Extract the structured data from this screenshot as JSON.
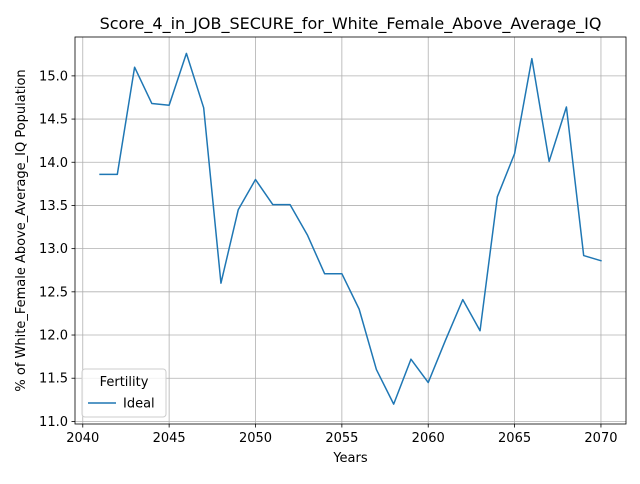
{
  "chart_data": {
    "type": "line",
    "title": "Score_4_in_JOB_SECURE_for_White_Female_Above_Average_IQ",
    "xlabel": "Years",
    "ylabel": "% of White_Female Above_Average_IQ Population",
    "xlim": [
      2039.55,
      2071.45
    ],
    "ylim": [
      10.97,
      15.45
    ],
    "xticks": [
      2040,
      2045,
      2050,
      2055,
      2060,
      2065,
      2070
    ],
    "yticks": [
      11.0,
      11.5,
      12.0,
      12.5,
      13.0,
      13.5,
      14.0,
      14.5,
      15.0
    ],
    "grid": true,
    "legend": {
      "title": "Fertility",
      "placement": "lower-left"
    },
    "series": [
      {
        "name": "Ideal",
        "color": "#1f77b4",
        "x": [
          2041,
          2042,
          2043,
          2044,
          2045,
          2046,
          2047,
          2048,
          2049,
          2050,
          2051,
          2052,
          2053,
          2054,
          2055,
          2056,
          2057,
          2058,
          2059,
          2060,
          2061,
          2062,
          2063,
          2064,
          2065,
          2066,
          2067,
          2068,
          2069,
          2070
        ],
        "values": [
          13.86,
          13.86,
          15.1,
          14.68,
          14.66,
          15.26,
          14.63,
          12.6,
          13.45,
          13.8,
          13.51,
          13.51,
          13.16,
          12.71,
          12.71,
          12.3,
          11.6,
          11.2,
          11.72,
          11.45,
          11.94,
          12.41,
          12.05,
          13.6,
          14.1,
          15.2,
          14.01,
          14.64,
          12.92,
          12.86
        ]
      }
    ]
  }
}
